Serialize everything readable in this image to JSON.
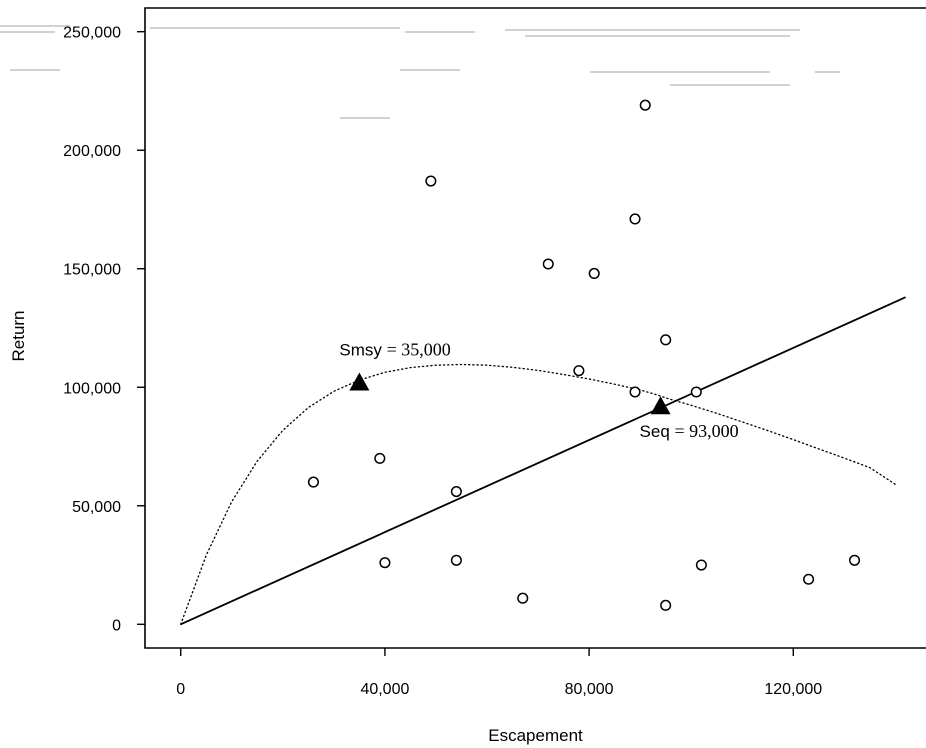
{
  "chart_data": {
    "type": "scatter",
    "xlabel": "Escapement",
    "ylabel": "Return",
    "xlim": [
      -7000,
      146000
    ],
    "ylim": [
      -10000,
      260000
    ],
    "x_ticks": [
      0,
      40000,
      80000,
      120000
    ],
    "x_tick_labels": [
      "0",
      "40,000",
      "80,000",
      "120,000"
    ],
    "y_ticks": [
      0,
      50000,
      100000,
      150000,
      200000,
      250000
    ],
    "y_tick_labels": [
      "0",
      "50,000",
      "100,000",
      "150,000",
      "200,000",
      "250,000"
    ],
    "grid": false,
    "series": [
      {
        "type": "scatter",
        "marker": "open-circle",
        "points": [
          [
            26000,
            60000
          ],
          [
            39000,
            70000
          ],
          [
            40000,
            26000
          ],
          [
            49000,
            187000
          ],
          [
            54000,
            56000
          ],
          [
            54000,
            27000
          ],
          [
            67000,
            11000
          ],
          [
            72000,
            152000
          ],
          [
            78000,
            107000
          ],
          [
            81000,
            148000
          ],
          [
            89000,
            171000
          ],
          [
            89000,
            98000
          ],
          [
            91000,
            219000
          ],
          [
            95000,
            120000
          ],
          [
            95000,
            8000
          ],
          [
            101000,
            98000
          ],
          [
            102000,
            25000
          ],
          [
            123000,
            19000
          ],
          [
            132000,
            27000
          ]
        ]
      },
      {
        "type": "line",
        "style": "solid",
        "points": [
          [
            0,
            0
          ],
          [
            142000,
            138000
          ]
        ]
      },
      {
        "type": "line",
        "style": "dotted",
        "points": [
          [
            0,
            0
          ],
          [
            5000,
            29200
          ],
          [
            10000,
            51800
          ],
          [
            15000,
            68900
          ],
          [
            20000,
            81800
          ],
          [
            25000,
            91400
          ],
          [
            30000,
            98300
          ],
          [
            35000,
            103000
          ],
          [
            40000,
            106300
          ],
          [
            45000,
            108300
          ],
          [
            50000,
            109300
          ],
          [
            55000,
            109600
          ],
          [
            60000,
            109300
          ],
          [
            65000,
            108400
          ],
          [
            70000,
            107100
          ],
          [
            75000,
            105400
          ],
          [
            80000,
            103500
          ],
          [
            85000,
            101300
          ],
          [
            90000,
            98900
          ],
          [
            93000,
            97000
          ],
          [
            95000,
            95500
          ],
          [
            100000,
            92400
          ],
          [
            105000,
            89000
          ],
          [
            110000,
            85400
          ],
          [
            115000,
            81700
          ],
          [
            120000,
            77900
          ],
          [
            125000,
            74000
          ],
          [
            130000,
            70100
          ],
          [
            135000,
            66100
          ],
          [
            140000,
            59000
          ]
        ]
      }
    ],
    "annotations": [
      {
        "name": "Smsy",
        "value": "= 35,000",
        "x": 35000,
        "y": 102000,
        "marker": "filled-triangle"
      },
      {
        "name": "Seq",
        "value": "= 93,000",
        "x": 94000,
        "y": 92000,
        "marker": "filled-triangle"
      }
    ]
  }
}
